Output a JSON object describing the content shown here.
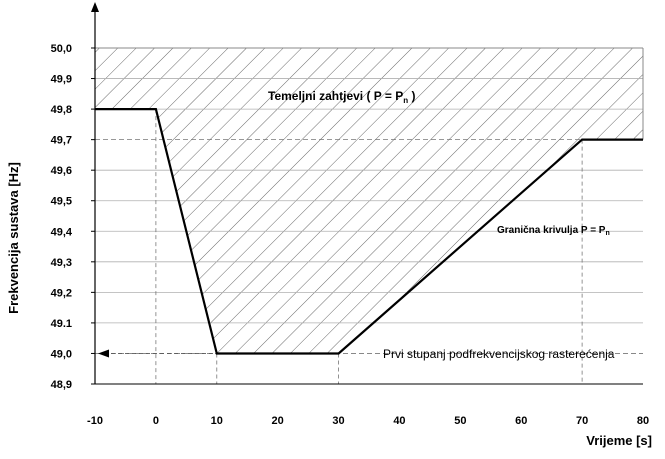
{
  "chart_data": {
    "type": "line",
    "xlabel": "Vrijeme [s]",
    "ylabel": "Frekvencija sustava [Hz]",
    "xlim": [
      -10,
      80
    ],
    "ylim": [
      48.9,
      50.0
    ],
    "x_ticks": [
      -10,
      0,
      10,
      20,
      30,
      40,
      50,
      60,
      70,
      80
    ],
    "y_ticks": [
      48.9,
      49.0,
      49.1,
      49.2,
      49.3,
      49.4,
      49.5,
      49.6,
      49.7,
      49.8,
      49.9,
      50.0
    ],
    "x_tick_labels": [
      "-10",
      "0",
      "10",
      "20",
      "30",
      "40",
      "50",
      "60",
      "70",
      "80"
    ],
    "y_tick_labels": [
      "48,9",
      "49,0",
      "49.1",
      "49,2",
      "49,3",
      "49,4",
      "49,5",
      "49,6",
      "49,7",
      "49,8",
      "49,9",
      "50,0"
    ],
    "grid": true,
    "series": [
      {
        "x": [
          -10,
          0,
          10,
          30,
          70,
          80
        ],
        "y": [
          49.8,
          49.8,
          49.0,
          49.0,
          49.7,
          49.7
        ]
      }
    ],
    "hatched_region_top": 50.0,
    "annotations": {
      "region_label": "Temeljni zahtjevi ( P = P",
      "region_label_sub": "n",
      "region_label_end": " )",
      "curve_label": "Granična krivulja P = P",
      "curve_label_sub": "n",
      "threshold_label": "Prvi stupanj podfrekvencijskog rasterećenja"
    },
    "reference_lines": {
      "horizontal": [
        49.7,
        49.0
      ],
      "vertical": [
        0,
        10,
        30,
        70
      ]
    }
  }
}
